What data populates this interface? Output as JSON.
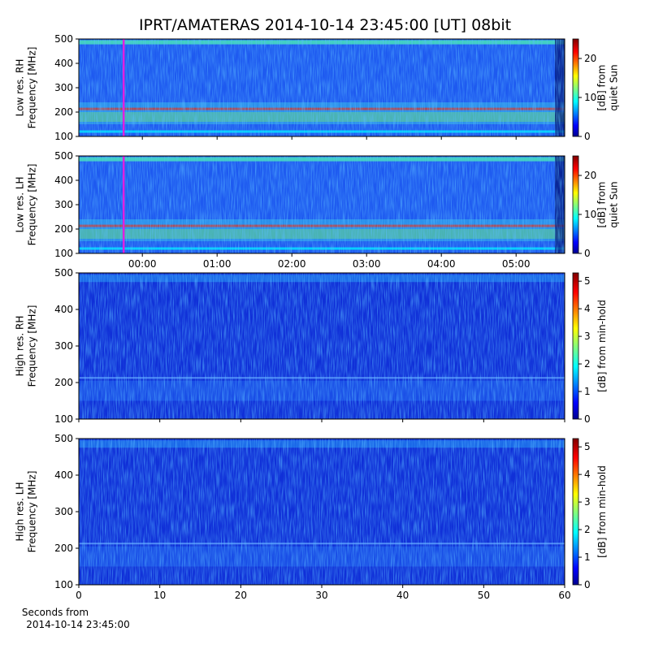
{
  "title": "IPRT/AMATERAS 2014-10-14 23:45:00 [UT]   08bit",
  "chart_data": [
    {
      "type": "heatmap",
      "ylabel": [
        "Low res. RH",
        "Frequency [MHz]"
      ],
      "ylim": [
        100,
        500
      ],
      "yticks": [
        100,
        200,
        300,
        400,
        500
      ],
      "xlim": [
        -0.85,
        5.65
      ],
      "xticks": [
        {
          "value": 0,
          "label": "00:00"
        },
        {
          "value": 1,
          "label": "01:00"
        },
        {
          "value": 2,
          "label": "02:00"
        },
        {
          "value": 3,
          "label": "03:00"
        },
        {
          "value": 4,
          "label": "04:00"
        },
        {
          "value": 5,
          "label": "05:00"
        }
      ],
      "show_xtick_labels": false,
      "marker_x": -0.25,
      "marker_color": "#e020e0",
      "colorbar": {
        "label": [
          "[dB] from",
          "quiet Sun"
        ],
        "lim": [
          0,
          25
        ],
        "ticks": [
          0,
          10,
          20
        ]
      }
    },
    {
      "type": "heatmap",
      "ylabel": [
        "Low res. LH",
        "Frequency [MHz]"
      ],
      "ylim": [
        100,
        500
      ],
      "yticks": [
        100,
        200,
        300,
        400,
        500
      ],
      "xlim": [
        -0.85,
        5.65
      ],
      "xticks": [
        {
          "value": 0,
          "label": "00:00"
        },
        {
          "value": 1,
          "label": "01:00"
        },
        {
          "value": 2,
          "label": "02:00"
        },
        {
          "value": 3,
          "label": "03:00"
        },
        {
          "value": 4,
          "label": "04:00"
        },
        {
          "value": 5,
          "label": "05:00"
        }
      ],
      "show_xtick_labels": true,
      "marker_x": -0.25,
      "marker_color": "#e020e0",
      "colorbar": {
        "label": [
          "[dB] from",
          "quiet Sun"
        ],
        "lim": [
          0,
          25
        ],
        "ticks": [
          0,
          10,
          20
        ]
      }
    },
    {
      "type": "heatmap",
      "ylabel": [
        "High res. RH",
        "Frequency [MHz]"
      ],
      "ylim": [
        100,
        500
      ],
      "yticks": [
        100,
        200,
        300,
        400,
        500
      ],
      "xlim": [
        0,
        60
      ],
      "xticks": [
        0,
        10,
        20,
        30,
        40,
        50,
        60
      ],
      "show_xtick_labels": false,
      "colorbar": {
        "label": [
          "[dB] from min-hold"
        ],
        "lim": [
          0,
          5.3
        ],
        "ticks": [
          0,
          1,
          2,
          3,
          4,
          5
        ]
      }
    },
    {
      "type": "heatmap",
      "ylabel": [
        "High res. LH",
        "Frequency [MHz]"
      ],
      "ylim": [
        100,
        500
      ],
      "yticks": [
        100,
        200,
        300,
        400,
        500
      ],
      "xlim": [
        0,
        60
      ],
      "xticks": [
        0,
        10,
        20,
        30,
        40,
        50,
        60
      ],
      "show_xtick_labels": true,
      "xlabel": [
        "Seconds from",
        "2014-10-14 23:45:00"
      ],
      "colorbar": {
        "label": [
          "[dB] from min-hold"
        ],
        "lim": [
          0,
          5.3
        ],
        "ticks": [
          0,
          1,
          2,
          3,
          4,
          5
        ]
      }
    }
  ]
}
